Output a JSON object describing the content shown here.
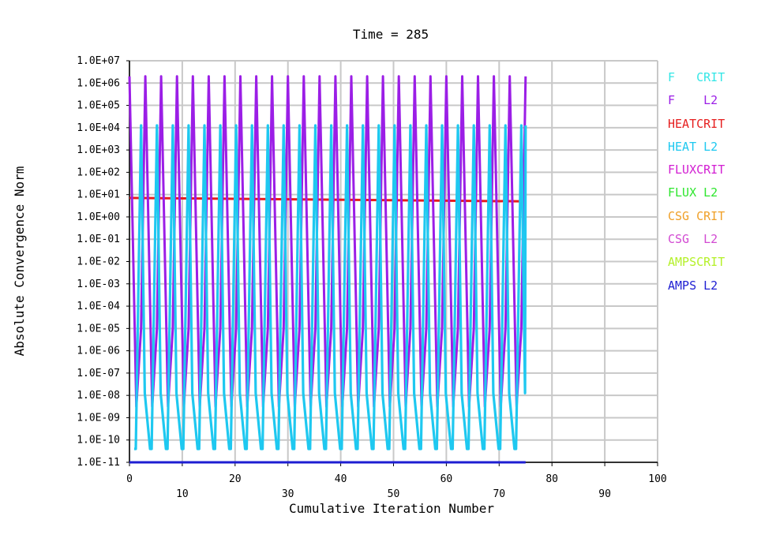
{
  "chart_data": {
    "type": "line",
    "title": "Time = 285",
    "xlabel": "Cumulative Iteration Number",
    "ylabel": "Absolute Convergence Norm",
    "xlim": [
      0,
      100
    ],
    "x_ticks": [
      "0",
      "10",
      "20",
      "30",
      "40",
      "50",
      "60",
      "70",
      "80",
      "90",
      "100"
    ],
    "ylim_log10": [
      -11,
      7
    ],
    "y_scale": "log",
    "y_ticks": [
      "1.0E+07",
      "1.0E+06",
      "1.0E+05",
      "1.0E+04",
      "1.0E+03",
      "1.0E+02",
      "1.0E+01",
      "1.0E+00",
      "1.0E-01",
      "1.0E-02",
      "1.0E-03",
      "1.0E-04",
      "1.0E-05",
      "1.0E-06",
      "1.0E-07",
      "1.0E-08",
      "1.0E-09",
      "1.0E-10",
      "1.0E-11"
    ],
    "grid": true,
    "legend_position": "right",
    "legend": [
      {
        "label": "F   CRIT",
        "color": "#33e6e6"
      },
      {
        "label": "F    L2",
        "color": "#9b1ee6"
      },
      {
        "label": "HEATCRIT",
        "color": "#e61e1e"
      },
      {
        "label": "HEAT L2",
        "color": "#1ec8f0"
      },
      {
        "label": "FLUXCRIT",
        "color": "#d21ed2"
      },
      {
        "label": "FLUX L2",
        "color": "#2ee62e"
      },
      {
        "label": "CSG CRIT",
        "color": "#f0a028"
      },
      {
        "label": "CSG  L2",
        "color": "#d24ad2"
      },
      {
        "label": "AMPSCRIT",
        "color": "#b4f028"
      },
      {
        "label": "AMPS L2",
        "color": "#1e1ed2"
      }
    ],
    "series": [
      {
        "name": "HEATCRIT",
        "x": [
          0,
          75
        ],
        "log10_y": [
          0.85,
          0.7
        ]
      },
      {
        "name": "AMPS L2",
        "x": [
          0,
          75
        ],
        "log10_y": [
          -11,
          -11
        ]
      },
      {
        "name": "F    L2",
        "pattern": "cycling",
        "cycle_length": 3,
        "x_range": [
          0,
          75
        ],
        "log10_peak": 6.3,
        "log10_trough": -8.5
      },
      {
        "name": "HEAT L2",
        "pattern": "cycling",
        "cycle_length": 3,
        "x_range": [
          0,
          75
        ],
        "log10_peak": 4.1,
        "log10_trough": -10.4
      }
    ]
  }
}
